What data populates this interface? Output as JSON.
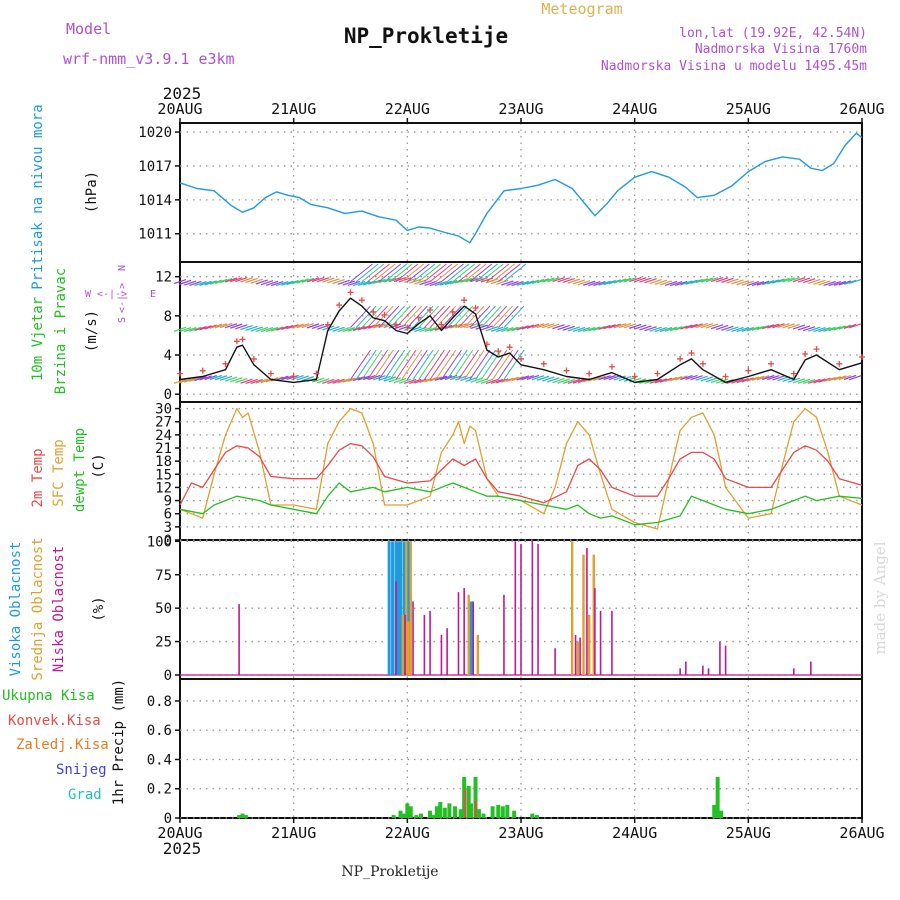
{
  "header": {
    "model_label": "Model",
    "model_name": "wrf-nmm_v3.9.1  e3km",
    "title": "NP_Prokletije",
    "meteogram_label": "Meteogram",
    "lonlat": "lon,lat (19.92E, 42.54N)",
    "elevation": "Nadmorska Visina 1760m",
    "model_elevation": "Nadmorska Visina u modelu 1495.45m",
    "year_top": "2025",
    "year_bottom": "2025",
    "footer_title": "NP_Prokletije",
    "watermark": "made by Angel"
  },
  "colors": {
    "pressure": "#1e9be0",
    "wind_label": "#22c022",
    "temp2m": "#e84a4a",
    "sfc": "#e0a030",
    "dewpt": "#22c022",
    "high_cloud": "#1e9be0",
    "mid_cloud": "#e0a030",
    "low_cloud": "#c01890",
    "total_precip": "#22c022",
    "conv_precip": "#e84a4a",
    "frz_precip": "#e87a20",
    "snow": "#4040e0",
    "hail": "#20c0c0",
    "header_purple": "#b050d0",
    "meteogram_orange": "#e0b050"
  },
  "chart_data": [
    {
      "type": "line",
      "title": "Pritisak na nivou mora",
      "ylabel_lines": [
        "Pritisak na nivou mora",
        "(hPa)"
      ],
      "ylim": [
        1008.5,
        1020.8
      ],
      "yticks": [
        1011,
        1014,
        1017,
        1020
      ],
      "x_labels": [
        "20AUG",
        "21AUG",
        "22AUG",
        "23AUG",
        "24AUG",
        "25AUG",
        "26AUG"
      ],
      "series": [
        {
          "name": "Pritisak",
          "x": [
            0,
            0.15,
            0.3,
            0.45,
            0.55,
            0.65,
            0.75,
            0.85,
            0.95,
            1.05,
            1.15,
            1.3,
            1.45,
            1.6,
            1.75,
            1.9,
            2.0,
            2.1,
            2.2,
            2.3,
            2.45,
            2.55,
            2.6,
            2.7,
            2.85,
            3.0,
            3.15,
            3.3,
            3.45,
            3.55,
            3.65,
            3.75,
            3.85,
            4.0,
            4.15,
            4.3,
            4.45,
            4.55,
            4.7,
            4.85,
            5.0,
            5.15,
            5.3,
            5.45,
            5.55,
            5.65,
            5.75,
            5.85,
            5.95,
            6.0
          ],
          "values": [
            1015.5,
            1015.0,
            1014.8,
            1013.5,
            1012.9,
            1013.3,
            1014.2,
            1014.7,
            1014.4,
            1014.2,
            1013.6,
            1013.3,
            1012.8,
            1013.0,
            1012.5,
            1012.2,
            1011.3,
            1011.6,
            1011.5,
            1011.2,
            1010.8,
            1010.2,
            1011.0,
            1012.8,
            1014.8,
            1015.0,
            1015.3,
            1015.8,
            1015.0,
            1013.8,
            1012.6,
            1013.6,
            1014.8,
            1016.0,
            1016.5,
            1016.0,
            1015.1,
            1014.2,
            1014.4,
            1015.2,
            1016.5,
            1017.4,
            1017.8,
            1017.6,
            1016.8,
            1016.6,
            1017.2,
            1018.8,
            1019.9,
            1019.5
          ]
        }
      ]
    },
    {
      "type": "line",
      "title": "10m Vjetar Brzina i Pravac",
      "ylabel_lines": [
        "10m Vjetar",
        "Brzina i Pravac",
        "(m/s)"
      ],
      "ylim": [
        -0.8,
        13.5
      ],
      "yticks": [
        0,
        4,
        8,
        12
      ],
      "compass": {
        "n": "N",
        "s": "S",
        "w": "W",
        "e": "E"
      },
      "series": [
        {
          "name": "Brzina vjetra",
          "x": [
            0,
            0.2,
            0.4,
            0.5,
            0.55,
            0.65,
            0.8,
            1.0,
            1.2,
            1.3,
            1.4,
            1.5,
            1.6,
            1.7,
            1.8,
            1.9,
            2.0,
            2.1,
            2.2,
            2.3,
            2.4,
            2.5,
            2.6,
            2.7,
            2.8,
            2.9,
            3.0,
            3.2,
            3.4,
            3.6,
            3.8,
            4.0,
            4.2,
            4.4,
            4.5,
            4.6,
            4.8,
            5.0,
            5.2,
            5.4,
            5.5,
            5.6,
            5.8,
            6.0
          ],
          "values": [
            1.5,
            1.8,
            2.5,
            4.8,
            5.0,
            3.0,
            1.5,
            1.2,
            1.5,
            6.5,
            8.5,
            9.8,
            9.0,
            7.8,
            7.5,
            6.5,
            6.2,
            7.2,
            8.0,
            6.5,
            7.8,
            9.0,
            8.2,
            4.5,
            3.8,
            4.2,
            3.0,
            2.5,
            1.8,
            1.5,
            2.2,
            1.2,
            1.5,
            3.0,
            3.6,
            2.5,
            1.2,
            1.8,
            2.5,
            1.5,
            3.5,
            4.0,
            2.5,
            3.2
          ]
        }
      ]
    },
    {
      "type": "line",
      "title": "2m Temp / SFC Temp / dewpt Temp",
      "ylabel_lines": [
        "2m Temp",
        "SFC Temp",
        "dewpt Temp",
        "(C)"
      ],
      "ylim": [
        0,
        31.5
      ],
      "yticks": [
        0,
        3,
        6,
        9,
        12,
        15,
        18,
        21,
        24,
        27,
        30
      ],
      "series": [
        {
          "name": "2m Temp",
          "x": [
            0,
            0.1,
            0.2,
            0.3,
            0.4,
            0.5,
            0.6,
            0.7,
            0.8,
            1.0,
            1.2,
            1.3,
            1.4,
            1.5,
            1.6,
            1.7,
            1.8,
            2.0,
            2.2,
            2.3,
            2.4,
            2.5,
            2.6,
            2.7,
            2.8,
            3.0,
            3.2,
            3.4,
            3.5,
            3.6,
            3.7,
            3.8,
            4.0,
            4.2,
            4.3,
            4.4,
            4.5,
            4.6,
            4.7,
            4.8,
            5.0,
            5.2,
            5.3,
            5.4,
            5.5,
            5.6,
            5.7,
            5.8,
            6.0
          ],
          "values": [
            8,
            13,
            12,
            16,
            20,
            21.5,
            21,
            19,
            14.5,
            14,
            14,
            17,
            20.5,
            22,
            21.5,
            19,
            14.5,
            13,
            13.5,
            16,
            18.5,
            17,
            18.5,
            14,
            11,
            10,
            8.5,
            11,
            17,
            18.5,
            16,
            12,
            10,
            10,
            14,
            18.5,
            20,
            20,
            18.5,
            14,
            12,
            12,
            16,
            20,
            21.5,
            20.5,
            18,
            14,
            12.5
          ]
        },
        {
          "name": "SFC Temp",
          "x": [
            0,
            0.1,
            0.2,
            0.3,
            0.4,
            0.45,
            0.5,
            0.55,
            0.6,
            0.7,
            0.8,
            1.0,
            1.2,
            1.3,
            1.4,
            1.5,
            1.6,
            1.7,
            1.8,
            2.0,
            2.2,
            2.3,
            2.4,
            2.45,
            2.5,
            2.55,
            2.6,
            2.7,
            2.8,
            3.0,
            3.2,
            3.3,
            3.4,
            3.5,
            3.6,
            3.7,
            3.8,
            4.0,
            4.2,
            4.3,
            4.4,
            4.5,
            4.6,
            4.7,
            4.8,
            5.0,
            5.2,
            5.3,
            5.4,
            5.5,
            5.6,
            5.7,
            5.8,
            6.0
          ],
          "values": [
            7,
            6,
            5,
            15,
            24,
            27,
            30,
            28,
            29,
            20,
            8,
            8,
            7,
            22,
            27,
            30,
            29,
            22,
            8,
            8,
            10,
            20,
            24,
            27,
            22,
            26,
            25,
            14,
            10,
            9,
            6,
            12,
            22,
            27,
            24,
            15,
            7,
            4,
            2.5,
            14,
            25,
            28,
            29,
            24,
            12,
            5,
            6,
            17,
            27,
            30,
            28,
            20,
            10,
            8
          ]
        },
        {
          "name": "dewpt Temp",
          "x": [
            0,
            0.2,
            0.3,
            0.4,
            0.5,
            0.6,
            0.7,
            0.8,
            1.0,
            1.2,
            1.3,
            1.4,
            1.5,
            1.7,
            1.8,
            2.0,
            2.2,
            2.4,
            2.5,
            2.6,
            2.7,
            2.8,
            3.0,
            3.2,
            3.4,
            3.5,
            3.6,
            3.7,
            3.8,
            4.0,
            4.2,
            4.4,
            4.5,
            4.6,
            4.8,
            5.0,
            5.2,
            5.4,
            5.5,
            5.6,
            5.8,
            6.0
          ],
          "values": [
            7,
            6,
            8,
            9,
            10,
            9.5,
            9,
            8,
            7,
            6,
            10,
            13,
            11,
            12,
            11,
            12,
            11,
            13,
            12,
            11,
            10,
            10,
            9,
            8,
            7,
            8,
            6,
            5,
            5.5,
            3.5,
            4,
            5.5,
            10,
            9,
            7,
            6,
            7,
            9,
            10,
            9,
            10,
            9.5
          ]
        }
      ]
    },
    {
      "type": "bar",
      "title": "Oblacnost",
      "ylabel_lines": [
        "Visoka Oblacnost",
        "Srednja Oblacnost",
        "Niska Oblacnost",
        "(%)"
      ],
      "ylim": [
        -3,
        101
      ],
      "yticks": [
        0,
        25,
        50,
        75,
        100
      ],
      "series": [
        {
          "name": "Visoka Oblacnost",
          "x": [
            1.84,
            1.87,
            1.9,
            1.92,
            1.94,
            1.97,
            2.0,
            2.02,
            2.56
          ],
          "values": [
            100,
            100,
            100,
            100,
            100,
            100,
            100,
            100,
            55
          ]
        },
        {
          "name": "Srednja Oblacnost",
          "x": [
            1.96,
            1.99,
            2.01,
            2.03,
            2.54,
            2.62,
            3.45,
            3.5,
            3.55,
            3.6,
            3.64
          ],
          "values": [
            45,
            100,
            40,
            100,
            60,
            30,
            100,
            25,
            90,
            45,
            90
          ]
        },
        {
          "name": "Niska Oblacnost",
          "x": [
            0.52,
            1.9,
            1.98,
            2.05,
            2.15,
            2.2,
            2.3,
            2.35,
            2.45,
            2.5,
            2.58,
            2.85,
            2.95,
            3.0,
            3.1,
            3.15,
            3.3,
            3.48,
            3.52,
            3.58,
            3.65,
            3.7,
            3.8,
            4.4,
            4.45,
            4.6,
            4.65,
            4.75,
            4.8,
            5.4,
            5.55
          ],
          "values": [
            53,
            70,
            45,
            55,
            45,
            48,
            30,
            35,
            62,
            65,
            55,
            60,
            100,
            98,
            100,
            98,
            20,
            30,
            28,
            95,
            65,
            48,
            48,
            5,
            10,
            7,
            5,
            25,
            22,
            5,
            10
          ]
        }
      ]
    },
    {
      "type": "bar",
      "title": "1hr Precip",
      "ylabel_lines": [
        "1hr Precip (mm)"
      ],
      "legend": [
        "Ukupna Kisa",
        "Konvek.Kisa",
        "Zaledj.Kisa",
        "Snijeg",
        "Grad"
      ],
      "ylim": [
        0,
        0.95
      ],
      "yticks": [
        0,
        0.2,
        0.4,
        0.6,
        0.8
      ],
      "series": [
        {
          "name": "Ukupna Kisa",
          "x": [
            0.52,
            0.55,
            0.58,
            1.88,
            1.94,
            1.97,
            2.0,
            2.03,
            2.08,
            2.12,
            2.2,
            2.23,
            2.26,
            2.29,
            2.33,
            2.37,
            2.42,
            2.47,
            2.5,
            2.54,
            2.56,
            2.6,
            2.63,
            2.67,
            2.75,
            2.8,
            2.84,
            2.88,
            2.94,
            3.1,
            3.14,
            4.7,
            4.73,
            4.76
          ],
          "values": [
            0.02,
            0.03,
            0.02,
            0.02,
            0.05,
            0.03,
            0.1,
            0.08,
            0.02,
            0.03,
            0.05,
            0.02,
            0.08,
            0.11,
            0.07,
            0.1,
            0.08,
            0.06,
            0.28,
            0.22,
            0.1,
            0.28,
            0.06,
            0.03,
            0.08,
            0.09,
            0.08,
            0.09,
            0.05,
            0.03,
            0.02,
            0.09,
            0.28,
            0.05
          ]
        },
        {
          "name": "Konvek.Kisa",
          "x": [
            2.51,
            2.6
          ],
          "values": [
            0.2,
            0.12
          ]
        }
      ]
    }
  ]
}
